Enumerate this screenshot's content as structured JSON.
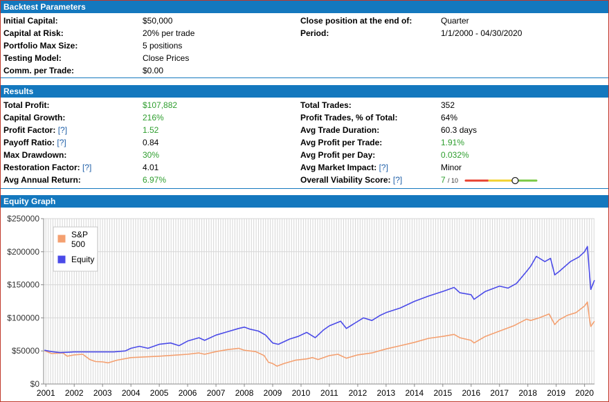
{
  "backtest": {
    "title": "Backtest Parameters",
    "rows": [
      {
        "label": "Initial Capital:",
        "value": "$50,000"
      },
      {
        "label": "Capital at Risk:",
        "value": "20% per trade"
      },
      {
        "label": "Portfolio Max Size:",
        "value": "5 positions"
      },
      {
        "label": "Testing Model:",
        "value": "Close Prices"
      },
      {
        "label": "Comm. per Trade:",
        "value": "$0.00"
      }
    ],
    "right_rows": [
      {
        "label": "Close position at the end of:",
        "value": "Quarter"
      },
      {
        "label": "Period:",
        "value": "1/1/2000 - 04/30/2020"
      }
    ]
  },
  "results": {
    "title": "Results",
    "help_text": "[?]",
    "left": [
      {
        "label": "Total Profit:",
        "value": "$107,882",
        "green": true,
        "help": false
      },
      {
        "label": "Capital Growth:",
        "value": "216%",
        "green": true,
        "help": false
      },
      {
        "label": "Profit Factor:",
        "value": "1.52",
        "green": true,
        "help": true
      },
      {
        "label": "Payoff Ratio:",
        "value": "0.84",
        "green": false,
        "help": true
      },
      {
        "label": "Max Drawdown:",
        "value": "30%",
        "green": true,
        "help": false
      },
      {
        "label": "Restoration Factor:",
        "value": "4.01",
        "green": false,
        "help": true
      },
      {
        "label": "Avg Annual Return:",
        "value": "6.97%",
        "green": true,
        "help": false
      }
    ],
    "right": [
      {
        "label": "Total Trades:",
        "value": "352",
        "green": false,
        "help": false
      },
      {
        "label": "Profit Trades, % of Total:",
        "value": "64%",
        "green": false,
        "help": false
      },
      {
        "label": "Avg Trade Duration:",
        "value": "60.3 days",
        "green": false,
        "help": false
      },
      {
        "label": "Avg Profit per Trade:",
        "value": "1.91%",
        "green": true,
        "help": false
      },
      {
        "label": "Avg Profit per Day:",
        "value": "0.032%",
        "green": true,
        "help": false
      },
      {
        "label": "Avg Market Impact:",
        "value": "Minor",
        "green": false,
        "help": true
      }
    ],
    "viability": {
      "label": "Overall Viability Score:",
      "score": "7",
      "max": "/ 10",
      "value": 0.7,
      "colors": [
        "#e8412f",
        "#f2d22e",
        "#7ac943"
      ]
    }
  },
  "equity_graph": {
    "title": "Equity Graph"
  },
  "chart_data": {
    "type": "line",
    "ylim": [
      0,
      250000
    ],
    "xlim": [
      2000.92,
      2020.35
    ],
    "y_ticks": [
      0,
      50000,
      100000,
      150000,
      200000,
      250000
    ],
    "y_tick_labels": [
      "$0",
      "$50000",
      "$100000",
      "$150000",
      "$200000",
      "$250000"
    ],
    "x_ticks": [
      "2001",
      "2002",
      "2003",
      "2004",
      "2005",
      "2006",
      "2007",
      "2008",
      "2009",
      "2010",
      "2011",
      "2012",
      "2013",
      "2014",
      "2015",
      "2016",
      "2017",
      "2018",
      "2019",
      "2020"
    ],
    "legend_position": "top-left",
    "series": [
      {
        "name": "S&P 500",
        "color": "#f4a070",
        "points": [
          [
            2000.95,
            50500
          ],
          [
            2001.2,
            46000
          ],
          [
            2001.6,
            47000
          ],
          [
            2001.75,
            42000
          ],
          [
            2002.0,
            44000
          ],
          [
            2002.3,
            45000
          ],
          [
            2002.55,
            37000
          ],
          [
            2002.75,
            34000
          ],
          [
            2003.0,
            33500
          ],
          [
            2003.2,
            32000
          ],
          [
            2003.5,
            36000
          ],
          [
            2004.0,
            40000
          ],
          [
            2004.5,
            41000
          ],
          [
            2005.0,
            42000
          ],
          [
            2005.5,
            43500
          ],
          [
            2006.0,
            45000
          ],
          [
            2006.4,
            47000
          ],
          [
            2006.6,
            45000
          ],
          [
            2007.0,
            49000
          ],
          [
            2007.4,
            52000
          ],
          [
            2007.8,
            54000
          ],
          [
            2008.0,
            51000
          ],
          [
            2008.4,
            49000
          ],
          [
            2008.7,
            43000
          ],
          [
            2008.85,
            33000
          ],
          [
            2009.0,
            31000
          ],
          [
            2009.15,
            27000
          ],
          [
            2009.4,
            31000
          ],
          [
            2009.8,
            36000
          ],
          [
            2010.2,
            38000
          ],
          [
            2010.4,
            40000
          ],
          [
            2010.6,
            37000
          ],
          [
            2011.0,
            43000
          ],
          [
            2011.3,
            45000
          ],
          [
            2011.6,
            39000
          ],
          [
            2012.0,
            44000
          ],
          [
            2012.5,
            47000
          ],
          [
            2013.0,
            53000
          ],
          [
            2013.5,
            58000
          ],
          [
            2014.0,
            63000
          ],
          [
            2014.5,
            69000
          ],
          [
            2015.0,
            72000
          ],
          [
            2015.4,
            75000
          ],
          [
            2015.6,
            70000
          ],
          [
            2016.0,
            66000
          ],
          [
            2016.1,
            62000
          ],
          [
            2016.5,
            72000
          ],
          [
            2017.0,
            80000
          ],
          [
            2017.5,
            88000
          ],
          [
            2017.95,
            98000
          ],
          [
            2018.1,
            96000
          ],
          [
            2018.4,
            100000
          ],
          [
            2018.75,
            106000
          ],
          [
            2018.95,
            90000
          ],
          [
            2019.1,
            97000
          ],
          [
            2019.4,
            104000
          ],
          [
            2019.7,
            108000
          ],
          [
            2020.0,
            118000
          ],
          [
            2020.1,
            124000
          ],
          [
            2020.17,
            100000
          ],
          [
            2020.22,
            87000
          ],
          [
            2020.35,
            95000
          ]
        ]
      },
      {
        "name": "Equity",
        "color": "#4a4ae8",
        "points": [
          [
            2000.95,
            51000
          ],
          [
            2001.2,
            49000
          ],
          [
            2001.5,
            47500
          ],
          [
            2001.8,
            48000
          ],
          [
            2002.0,
            48500
          ],
          [
            2002.5,
            48500
          ],
          [
            2003.0,
            48500
          ],
          [
            2003.4,
            48500
          ],
          [
            2003.8,
            50000
          ],
          [
            2004.0,
            54000
          ],
          [
            2004.3,
            57000
          ],
          [
            2004.6,
            54000
          ],
          [
            2005.0,
            60000
          ],
          [
            2005.4,
            62000
          ],
          [
            2005.7,
            58000
          ],
          [
            2006.0,
            65000
          ],
          [
            2006.4,
            70000
          ],
          [
            2006.6,
            66000
          ],
          [
            2007.0,
            74000
          ],
          [
            2007.4,
            79000
          ],
          [
            2007.8,
            84000
          ],
          [
            2008.0,
            86000
          ],
          [
            2008.2,
            83000
          ],
          [
            2008.5,
            80000
          ],
          [
            2008.75,
            74000
          ],
          [
            2009.0,
            62000
          ],
          [
            2009.2,
            60000
          ],
          [
            2009.6,
            68000
          ],
          [
            2009.9,
            72000
          ],
          [
            2010.2,
            78000
          ],
          [
            2010.5,
            70000
          ],
          [
            2010.8,
            82000
          ],
          [
            2011.0,
            88000
          ],
          [
            2011.4,
            95000
          ],
          [
            2011.6,
            84000
          ],
          [
            2011.9,
            92000
          ],
          [
            2012.2,
            100000
          ],
          [
            2012.5,
            96000
          ],
          [
            2012.8,
            104000
          ],
          [
            2013.0,
            108000
          ],
          [
            2013.5,
            115000
          ],
          [
            2014.0,
            125000
          ],
          [
            2014.5,
            133000
          ],
          [
            2015.0,
            140000
          ],
          [
            2015.4,
            146000
          ],
          [
            2015.6,
            138000
          ],
          [
            2016.0,
            135000
          ],
          [
            2016.1,
            128000
          ],
          [
            2016.5,
            140000
          ],
          [
            2017.0,
            148000
          ],
          [
            2017.3,
            145000
          ],
          [
            2017.6,
            152000
          ],
          [
            2017.95,
            170000
          ],
          [
            2018.1,
            178000
          ],
          [
            2018.3,
            193000
          ],
          [
            2018.6,
            185000
          ],
          [
            2018.8,
            190000
          ],
          [
            2018.95,
            165000
          ],
          [
            2019.1,
            170000
          ],
          [
            2019.5,
            185000
          ],
          [
            2019.8,
            192000
          ],
          [
            2020.0,
            200000
          ],
          [
            2020.1,
            208000
          ],
          [
            2020.17,
            170000
          ],
          [
            2020.22,
            143000
          ],
          [
            2020.35,
            157000
          ]
        ]
      }
    ]
  }
}
